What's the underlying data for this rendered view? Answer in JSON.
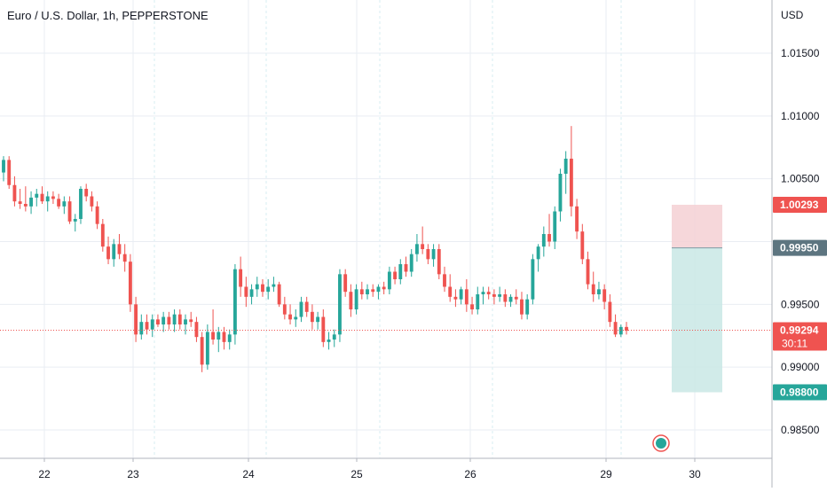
{
  "header": {
    "title": "Euro / U.S. Dollar, 1h, PEPPERSTONE",
    "currency": "USD"
  },
  "colors": {
    "up": "#26a69a",
    "down": "#ef5350",
    "grid": "#e9edf3",
    "axis_text": "#131722",
    "stop_zone": "#f5d0d3",
    "target_zone": "#c9e8e5",
    "entry_label": "#5d7580"
  },
  "chart_data": {
    "type": "candlestick",
    "ylim": [
      0.983,
      1.0195
    ],
    "y_ticks": [
      "1.01500",
      "1.01000",
      "1.00500",
      "0.99500",
      "0.99000",
      "0.98500"
    ],
    "x_ticks": [
      "22",
      "23",
      "24",
      "25",
      "26",
      "29",
      "30"
    ],
    "price_labels": {
      "stop": "1.00293",
      "entry": "0.99950",
      "current": "0.99294",
      "countdown": "30:11",
      "target": "0.98800"
    },
    "position": {
      "stop": 1.00293,
      "entry": 0.9995,
      "target": 0.988
    },
    "current_price": 0.99294,
    "candles": [
      [
        1.0055,
        1.0068,
        1.0048,
        1.0065
      ],
      [
        1.0065,
        1.0068,
        1.0042,
        1.0045
      ],
      [
        1.0045,
        1.0052,
        1.0028,
        1.0032
      ],
      [
        1.0032,
        1.0042,
        1.0026,
        1.003
      ],
      [
        1.003,
        1.0044,
        1.0024,
        1.0028
      ],
      [
        1.0028,
        1.004,
        1.0022,
        1.0035
      ],
      [
        1.0035,
        1.0042,
        1.0028,
        1.0038
      ],
      [
        1.0038,
        1.0044,
        1.003,
        1.0032
      ],
      [
        1.0032,
        1.004,
        1.0024,
        1.0036
      ],
      [
        1.0036,
        1.004,
        1.003,
        1.0034
      ],
      [
        1.0034,
        1.0038,
        1.0026,
        1.0028
      ],
      [
        1.0028,
        1.0036,
        1.0022,
        1.0032
      ],
      [
        1.0032,
        1.0036,
        1.0014,
        1.0016
      ],
      [
        1.0016,
        1.0022,
        1.0008,
        1.0018
      ],
      [
        1.0018,
        1.0044,
        1.0014,
        1.0042
      ],
      [
        1.0042,
        1.0046,
        1.0032,
        1.0036
      ],
      [
        1.0036,
        1.004,
        1.0024,
        1.0028
      ],
      [
        1.0028,
        1.0032,
        1.001,
        1.0014
      ],
      [
        1.0014,
        1.0018,
        0.9992,
        0.9996
      ],
      [
        0.9996,
        1.0004,
        0.9982,
        0.9986
      ],
      [
        0.9986,
        1.0002,
        0.998,
        0.9998
      ],
      [
        0.9998,
        1.0006,
        0.9986,
        0.999
      ],
      [
        0.999,
        0.9998,
        0.9976,
        0.9984
      ],
      [
        0.9984,
        0.999,
        0.9944,
        0.995
      ],
      [
        0.995,
        0.9956,
        0.992,
        0.9926
      ],
      [
        0.9926,
        0.9942,
        0.9922,
        0.9936
      ],
      [
        0.9936,
        0.9942,
        0.9926,
        0.993
      ],
      [
        0.993,
        0.9942,
        0.9924,
        0.9938
      ],
      [
        0.9938,
        0.9942,
        0.9932,
        0.9934
      ],
      [
        0.9934,
        0.9944,
        0.9928,
        0.994
      ],
      [
        0.994,
        0.9944,
        0.993,
        0.9934
      ],
      [
        0.9934,
        0.9946,
        0.9928,
        0.9942
      ],
      [
        0.9942,
        0.9946,
        0.993,
        0.9934
      ],
      [
        0.9934,
        0.9942,
        0.9926,
        0.9938
      ],
      [
        0.9938,
        0.9944,
        0.9932,
        0.9936
      ],
      [
        0.9936,
        0.994,
        0.992,
        0.9924
      ],
      [
        0.9924,
        0.9928,
        0.9896,
        0.9902
      ],
      [
        0.9902,
        0.9934,
        0.9898,
        0.9928
      ],
      [
        0.9928,
        0.9946,
        0.9918,
        0.9922
      ],
      [
        0.9922,
        0.9932,
        0.9912,
        0.9928
      ],
      [
        0.9928,
        0.9932,
        0.9914,
        0.992
      ],
      [
        0.992,
        0.993,
        0.9914,
        0.9926
      ],
      [
        0.9926,
        0.9982,
        0.9918,
        0.9978
      ],
      [
        0.9978,
        0.9988,
        0.9956,
        0.9964
      ],
      [
        0.9964,
        0.9972,
        0.9948,
        0.9956
      ],
      [
        0.9956,
        0.9966,
        0.995,
        0.9962
      ],
      [
        0.9962,
        0.9972,
        0.9956,
        0.9966
      ],
      [
        0.9966,
        0.997,
        0.9956,
        0.996
      ],
      [
        0.996,
        0.997,
        0.9954,
        0.9964
      ],
      [
        0.9964,
        0.9972,
        0.996,
        0.9966
      ],
      [
        0.9966,
        0.9968,
        0.9948,
        0.995
      ],
      [
        0.995,
        0.9956,
        0.9938,
        0.9942
      ],
      [
        0.9942,
        0.995,
        0.9934,
        0.9938
      ],
      [
        0.9938,
        0.9946,
        0.9932,
        0.994
      ],
      [
        0.994,
        0.9956,
        0.9936,
        0.9952
      ],
      [
        0.9952,
        0.9956,
        0.994,
        0.9944
      ],
      [
        0.9944,
        0.995,
        0.993,
        0.9936
      ],
      [
        0.9936,
        0.9944,
        0.993,
        0.994
      ],
      [
        0.994,
        0.9946,
        0.9916,
        0.992
      ],
      [
        0.992,
        0.9928,
        0.9914,
        0.9922
      ],
      [
        0.9922,
        0.993,
        0.9916,
        0.9926
      ],
      [
        0.9926,
        0.9978,
        0.992,
        0.9974
      ],
      [
        0.9974,
        0.9978,
        0.9956,
        0.996
      ],
      [
        0.996,
        0.9966,
        0.994,
        0.9946
      ],
      [
        0.9946,
        0.9966,
        0.9942,
        0.9962
      ],
      [
        0.9962,
        0.9968,
        0.9954,
        0.9958
      ],
      [
        0.9958,
        0.9966,
        0.9954,
        0.9962
      ],
      [
        0.9962,
        0.9966,
        0.9956,
        0.996
      ],
      [
        0.996,
        0.9966,
        0.9954,
        0.9964
      ],
      [
        0.9964,
        0.9968,
        0.9958,
        0.9962
      ],
      [
        0.9962,
        0.998,
        0.9958,
        0.9976
      ],
      [
        0.9976,
        0.998,
        0.9966,
        0.997
      ],
      [
        0.997,
        0.9986,
        0.9966,
        0.9982
      ],
      [
        0.9982,
        0.9988,
        0.9972,
        0.9976
      ],
      [
        0.9976,
        0.9994,
        0.9972,
        0.999
      ],
      [
        0.999,
        1.0006,
        0.9984,
        0.9998
      ],
      [
        0.9998,
        1.0012,
        0.999,
        0.9994
      ],
      [
        0.9994,
        0.9998,
        0.9982,
        0.9986
      ],
      [
        0.9986,
        0.9998,
        0.998,
        0.9994
      ],
      [
        0.9994,
        0.9998,
        0.997,
        0.9974
      ],
      [
        0.9974,
        0.998,
        0.996,
        0.9964
      ],
      [
        0.9964,
        0.9974,
        0.9952,
        0.9956
      ],
      [
        0.9956,
        0.9962,
        0.9948,
        0.9954
      ],
      [
        0.9954,
        0.9964,
        0.995,
        0.9962
      ],
      [
        0.9962,
        0.997,
        0.9944,
        0.995
      ],
      [
        0.995,
        0.9956,
        0.9942,
        0.9946
      ],
      [
        0.9946,
        0.9964,
        0.9942,
        0.9958
      ],
      [
        0.9958,
        0.9964,
        0.995,
        0.996
      ],
      [
        0.996,
        0.9964,
        0.9954,
        0.9958
      ],
      [
        0.9958,
        0.9962,
        0.995,
        0.9956
      ],
      [
        0.9956,
        0.9964,
        0.9952,
        0.9958
      ],
      [
        0.9958,
        0.9962,
        0.9948,
        0.9952
      ],
      [
        0.9952,
        0.9958,
        0.9948,
        0.9956
      ],
      [
        0.9956,
        0.9962,
        0.995,
        0.9954
      ],
      [
        0.9954,
        0.996,
        0.9938,
        0.9942
      ],
      [
        0.9942,
        0.9958,
        0.9938,
        0.9954
      ],
      [
        0.9954,
        0.999,
        0.995,
        0.9986
      ],
      [
        0.9986,
        0.9998,
        0.9976,
        0.9996
      ],
      [
        0.9996,
        1.0012,
        0.9988,
        1.0006
      ],
      [
        1.0006,
        1.0022,
        0.9996,
        1.0
      ],
      [
        1.0,
        1.0028,
        0.9994,
        1.0024
      ],
      [
        1.0024,
        1.0058,
        1.0016,
        1.0054
      ],
      [
        1.0054,
        1.0072,
        1.0038,
        1.0066
      ],
      [
        1.0066,
        1.0092,
        1.002,
        1.0028
      ],
      [
        1.0028,
        1.0034,
        1.0002,
        1.0008
      ],
      [
        1.0008,
        1.0014,
        0.9982,
        0.9986
      ],
      [
        0.9986,
        0.9992,
        0.9962,
        0.9966
      ],
      [
        0.9966,
        0.9976,
        0.9952,
        0.9958
      ],
      [
        0.9958,
        0.9968,
        0.9954,
        0.9962
      ],
      [
        0.9962,
        0.9966,
        0.9946,
        0.9952
      ],
      [
        0.9952,
        0.9958,
        0.9932,
        0.9936
      ],
      [
        0.9936,
        0.9942,
        0.9924,
        0.9926
      ],
      [
        0.9926,
        0.9934,
        0.9924,
        0.9932
      ],
      [
        0.9932,
        0.9936,
        0.9926,
        0.9929
      ]
    ]
  }
}
